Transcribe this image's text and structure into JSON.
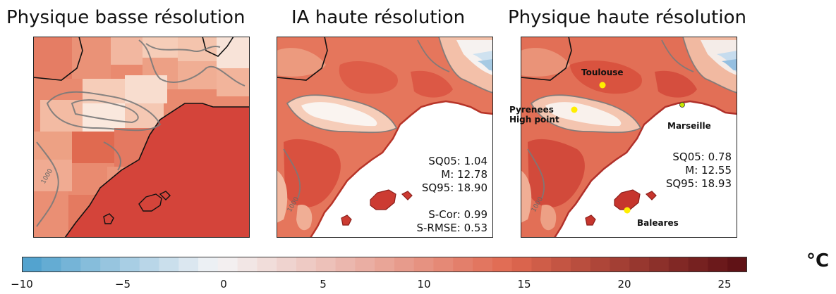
{
  "panels": [
    {
      "title": "Physique basse résolution"
    },
    {
      "title": "IA haute résolution",
      "stats": {
        "sq05": "SQ05: 1.04",
        "m": "M: 12.78",
        "sq95": "SQ95: 18.90",
        "scor": "S-Cor: 0.99",
        "srmse": "S-RMSE: 0.53"
      }
    },
    {
      "title": "Physique haute résolution",
      "stats": {
        "sq05": "SQ05: 0.78",
        "m": "M: 12.55",
        "sq95": "SQ95: 18.93"
      },
      "locations": {
        "toulouse": "Toulouse",
        "pyrenees_line1": "Pyrenees",
        "pyrenees_line2": "High point",
        "marseille": "Marseille",
        "baleares": "Baleares"
      }
    }
  ],
  "contour_labels": [
    "1000",
    "1000",
    "1000"
  ],
  "colorbar": {
    "range": [
      -10,
      27
    ],
    "ticks": [
      "−10",
      "−5",
      "0",
      "5",
      "10",
      "15",
      "20",
      "25"
    ],
    "unit": "°C",
    "colors": {
      "cold": "#4a9fcd",
      "zero": "#f4f4f6",
      "warm": "#e0684f",
      "hot": "#5a0e14"
    }
  },
  "marker_color": "#ffee00"
}
